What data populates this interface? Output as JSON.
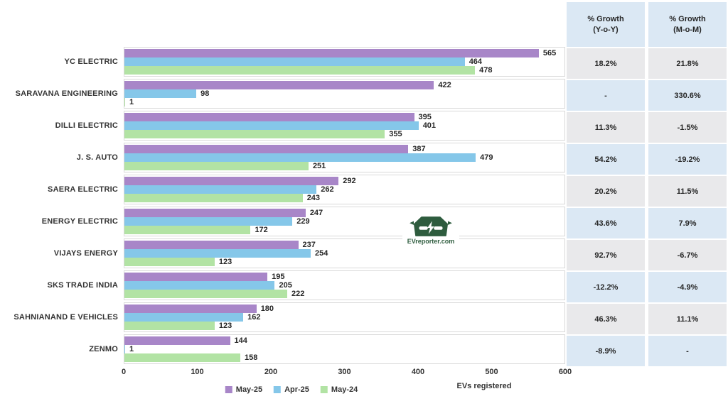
{
  "chart_data": {
    "type": "bar",
    "orientation": "horizontal",
    "title": "",
    "xlabel": "EVs registered",
    "ylabel": "",
    "xlim": [
      0,
      600
    ],
    "xticks": [
      0,
      100,
      200,
      300,
      400,
      500,
      600
    ],
    "grid": false,
    "legend_position": "bottom",
    "categories": [
      "YC ELECTRIC",
      "SARAVANA ENGINEERING",
      "DILLI ELECTRIC",
      "J. S. AUTO",
      "SAERA ELECTRIC",
      "ENERGY ELECTRIC",
      "VIJAYS ENERGY",
      "SKS TRADE INDIA",
      "SAHNIANAND E VEHICLES",
      "ZENMO"
    ],
    "series": [
      {
        "name": "May-25",
        "color": "#a886c8",
        "values": [
          565,
          422,
          395,
          387,
          292,
          247,
          237,
          195,
          180,
          144
        ]
      },
      {
        "name": "Apr-25",
        "color": "#85c7e9",
        "values": [
          464,
          98,
          401,
          479,
          262,
          229,
          254,
          205,
          162,
          1
        ]
      },
      {
        "name": "May-24",
        "color": "#b2e3a4",
        "values": [
          478,
          1,
          355,
          251,
          243,
          172,
          123,
          222,
          123,
          158
        ]
      }
    ]
  },
  "table": {
    "columns": [
      {
        "line1": "% Growth",
        "line2": "(Y-o-Y)"
      },
      {
        "line1": "% Growth",
        "line2": "(M-o-M)"
      }
    ],
    "rows": [
      [
        "18.2%",
        "21.8%"
      ],
      [
        "-",
        "330.6%"
      ],
      [
        "11.3%",
        "-1.5%"
      ],
      [
        "54.2%",
        "-19.2%"
      ],
      [
        "20.2%",
        "11.5%"
      ],
      [
        "43.6%",
        "7.9%"
      ],
      [
        "92.7%",
        "-6.7%"
      ],
      [
        "-12.2%",
        "-4.9%"
      ],
      [
        "46.3%",
        "11.1%"
      ],
      [
        "-8.9%",
        "-"
      ]
    ]
  },
  "watermark": {
    "text": "EVreporter.com"
  },
  "colors": {
    "bar_may25": "#a886c8",
    "bar_apr25": "#85c7e9",
    "bar_may24": "#b2e3a4",
    "table_blue": "#dbe8f4",
    "table_gray": "#e9e9eb",
    "band_border": "#d9d9d9",
    "logo_green": "#2e5c3e",
    "text": "#262626"
  }
}
